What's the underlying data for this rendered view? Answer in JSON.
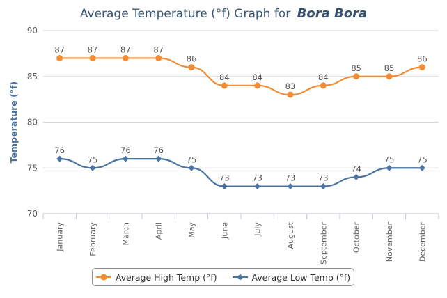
{
  "title": {
    "prefix": "Average Temperature (°f) Graph for",
    "place": "Bora Bora"
  },
  "legend": {
    "items": [
      {
        "label": "Average High Temp (°f)",
        "color": "#f28c34",
        "marker": "circle"
      },
      {
        "label": "Average Low Temp (°f)",
        "color": "#4a73a0",
        "marker": "diamond"
      }
    ]
  },
  "chart_data": {
    "type": "line",
    "title": "Average Temperature (°f) Graph for Bora Bora",
    "xlabel": "",
    "ylabel": "Temperature (°f)",
    "categories": [
      "January",
      "February",
      "March",
      "April",
      "May",
      "June",
      "July",
      "August",
      "September",
      "October",
      "November",
      "December"
    ],
    "ylim": [
      70,
      90
    ],
    "yticks": [
      70,
      75,
      80,
      85,
      90
    ],
    "grid": "horizontal",
    "legend_position": "bottom",
    "series": [
      {
        "name": "Average High Temp (°f)",
        "color": "#f28c34",
        "marker": "circle",
        "values": [
          87,
          87,
          87,
          87,
          86,
          84,
          84,
          83,
          84,
          85,
          85,
          86
        ]
      },
      {
        "name": "Average Low Temp (°f)",
        "color": "#4a73a0",
        "marker": "diamond",
        "values": [
          76,
          75,
          76,
          76,
          75,
          73,
          73,
          73,
          73,
          74,
          75,
          75
        ]
      }
    ]
  }
}
